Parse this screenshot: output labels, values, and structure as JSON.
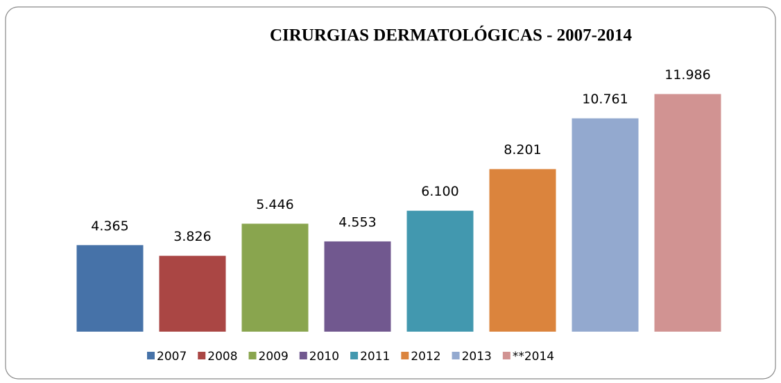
{
  "chart_data": {
    "type": "bar",
    "title": "CIRURGIAS DERMATOLÓGICAS - 2007-2014",
    "series": [
      {
        "name": "2007",
        "color": "#4672a8",
        "values": [
          4365
        ],
        "value_labels": [
          "4.365"
        ]
      },
      {
        "name": "2008",
        "color": "#aa4644",
        "values": [
          3826
        ],
        "value_labels": [
          "3.826"
        ]
      },
      {
        "name": "2009",
        "color": "#89a54e",
        "values": [
          5446
        ],
        "value_labels": [
          "5.446"
        ]
      },
      {
        "name": "2010",
        "color": "#71588f",
        "values": [
          4553
        ],
        "value_labels": [
          "4.553"
        ]
      },
      {
        "name": "2011",
        "color": "#4298af",
        "values": [
          6100
        ],
        "value_labels": [
          "6.100"
        ]
      },
      {
        "name": "2012",
        "color": "#db843d",
        "values": [
          8201
        ],
        "value_labels": [
          "8.201"
        ]
      },
      {
        "name": "2013",
        "color": "#93a9cf",
        "values": [
          10761
        ],
        "value_labels": [
          "10.761"
        ]
      },
      {
        "name": "**2014",
        "color": "#d19392",
        "values": [
          11986
        ],
        "value_labels": [
          "11.986"
        ]
      }
    ],
    "ylim": [
      0,
      14000
    ],
    "legend": "bottom"
  }
}
